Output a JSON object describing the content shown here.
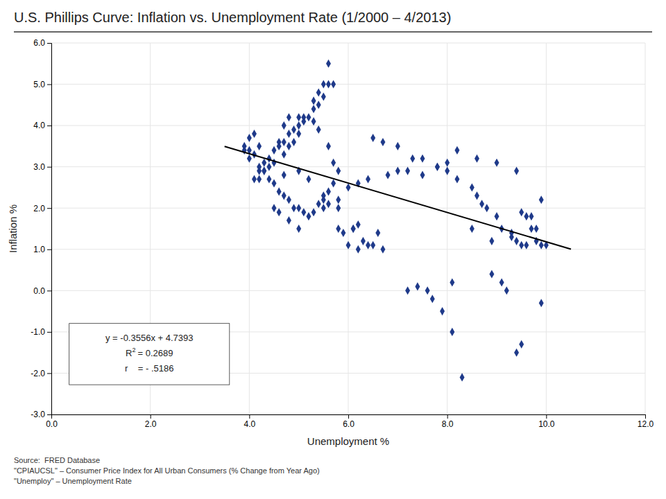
{
  "chart_data": {
    "type": "scatter",
    "title": "U.S. Phillips Curve: Inflation vs. Unemployment Rate (1/2000 – 4/2013)",
    "xlabel": "Unemployment %",
    "ylabel": "Inflation %",
    "xlim": [
      0.0,
      12.0
    ],
    "ylim": [
      -3.0,
      6.0
    ],
    "xticks": [
      {
        "value": 0.0,
        "label": "0.0"
      },
      {
        "value": 2.0,
        "label": "2.0"
      },
      {
        "value": 4.0,
        "label": "4.0"
      },
      {
        "value": 6.0,
        "label": "6.0"
      },
      {
        "value": 8.0,
        "label": "8.0"
      },
      {
        "value": 10.0,
        "label": "10.0"
      },
      {
        "value": 12.0,
        "label": "12.0"
      }
    ],
    "yticks": [
      {
        "value": -3.0,
        "label": "-3.0"
      },
      {
        "value": -2.0,
        "label": "-2.0"
      },
      {
        "value": -1.0,
        "label": "-1.0"
      },
      {
        "value": 0.0,
        "label": "0.0"
      },
      {
        "value": 1.0,
        "label": "1.0"
      },
      {
        "value": 2.0,
        "label": "2.0"
      },
      {
        "value": 3.0,
        "label": "3.0"
      },
      {
        "value": 4.0,
        "label": "4.0"
      },
      {
        "value": 5.0,
        "label": "5.0"
      },
      {
        "value": 6.0,
        "label": "6.0"
      }
    ],
    "grid": true,
    "series": [
      {
        "type": "scatter",
        "color": "#1f3a8a",
        "marker": "diamond",
        "x": [
          3.9,
          4.0,
          4.1,
          4.2,
          4.1,
          4.0,
          3.9,
          4.0,
          4.1,
          4.2,
          4.4,
          4.7,
          4.2,
          4.3,
          4.5,
          4.6,
          4.7,
          4.8,
          5.0,
          5.1,
          5.3,
          5.4,
          5.6,
          5.7,
          5.8,
          5.7,
          5.6,
          5.5,
          5.4,
          5.3,
          5.2,
          5.1,
          5.0,
          4.9,
          4.8,
          4.7,
          4.6,
          4.5,
          4.4,
          4.3,
          4.2,
          4.3,
          4.4,
          4.5,
          4.6,
          4.7,
          4.8,
          4.9,
          5.0,
          5.1,
          5.2,
          5.3,
          5.4,
          5.5,
          5.6,
          5.7,
          5.6,
          5.5,
          5.4,
          5.3,
          5.0,
          4.9,
          4.8,
          4.7,
          5.0,
          5.2,
          5.5,
          5.8,
          6.1,
          6.3,
          6.5,
          6.7,
          7.2,
          7.7,
          8.1,
          8.5,
          8.9,
          9.3,
          9.7,
          9.9,
          9.8,
          9.6,
          9.5,
          9.4,
          9.3,
          9.1,
          9.0,
          8.8,
          8.7,
          8.6,
          8.5,
          8.2,
          8.0,
          7.8,
          7.5,
          7.3,
          7.0,
          6.7,
          6.5,
          8.2,
          8.6,
          9.0,
          9.4,
          9.5,
          9.6,
          9.7,
          9.8,
          9.9,
          10.0,
          6.0,
          6.2,
          6.4,
          6.6,
          7.4,
          7.6,
          7.9,
          8.1,
          8.3,
          9.4,
          9.5,
          9.9,
          5.8,
          5.9,
          6.1,
          6.2,
          5.5,
          5.6,
          5.8,
          6.0,
          6.2,
          6.4,
          6.8,
          7.0,
          7.2,
          7.5,
          7.8,
          8.0,
          4.5,
          4.6,
          4.8,
          5.0,
          9.2,
          9.1,
          8.9
        ],
        "values": [
          3.5,
          3.4,
          3.3,
          3.5,
          3.8,
          3.7,
          3.4,
          3.2,
          2.7,
          2.7,
          3.0,
          2.8,
          2.9,
          2.9,
          3.1,
          3.6,
          4.0,
          4.2,
          4.2,
          4.2,
          4.1,
          3.9,
          3.5,
          3.1,
          2.9,
          2.6,
          2.4,
          2.2,
          2.1,
          1.9,
          1.8,
          1.9,
          2.0,
          2.0,
          2.2,
          2.3,
          2.4,
          2.6,
          2.7,
          2.9,
          3.0,
          3.1,
          3.2,
          3.4,
          3.5,
          3.6,
          3.8,
          3.9,
          4.0,
          4.1,
          4.2,
          4.4,
          4.5,
          4.7,
          5.0,
          5.0,
          5.5,
          5.0,
          4.8,
          4.6,
          3.8,
          3.6,
          3.5,
          3.3,
          2.9,
          2.7,
          2.3,
          2.0,
          1.5,
          1.2,
          1.1,
          1.0,
          0.0,
          -0.2,
          0.2,
          1.5,
          1.2,
          1.4,
          1.8,
          2.2,
          1.5,
          1.1,
          1.1,
          1.2,
          1.3,
          1.5,
          1.8,
          2.0,
          2.1,
          2.3,
          2.5,
          2.7,
          2.9,
          3.0,
          3.2,
          3.2,
          3.5,
          3.6,
          3.7,
          3.4,
          3.2,
          3.1,
          2.9,
          1.9,
          1.8,
          1.5,
          1.2,
          1.1,
          1.1,
          1.1,
          1.0,
          1.1,
          1.4,
          0.1,
          0.0,
          -0.5,
          -1.0,
          -2.1,
          -1.5,
          -1.3,
          -0.3,
          1.5,
          1.4,
          1.5,
          1.6,
          2.0,
          2.1,
          2.2,
          2.5,
          2.6,
          2.7,
          2.8,
          2.9,
          2.9,
          2.8,
          3.0,
          3.1,
          2.0,
          1.9,
          1.7,
          1.5,
          0.0,
          0.2,
          0.4
        ]
      },
      {
        "type": "line",
        "color": "#000000",
        "line_style": "solid",
        "x": [
          3.5,
          10.5
        ],
        "values": [
          3.4947,
          1.0055
        ]
      }
    ],
    "annotations": [
      [
        "y = -0.3556x + 4.7393"
      ],
      [
        "R",
        "2",
        "= 0.2689"
      ],
      [
        "r    = - .5186"
      ]
    ],
    "source": [
      "Source:  FRED Database",
      "\"CPIAUCSL\" – Consumer Price Index for All Urban Consumers (% Change from Year Ago)",
      "\"Unemploy\" – Unemployment Rate"
    ]
  }
}
